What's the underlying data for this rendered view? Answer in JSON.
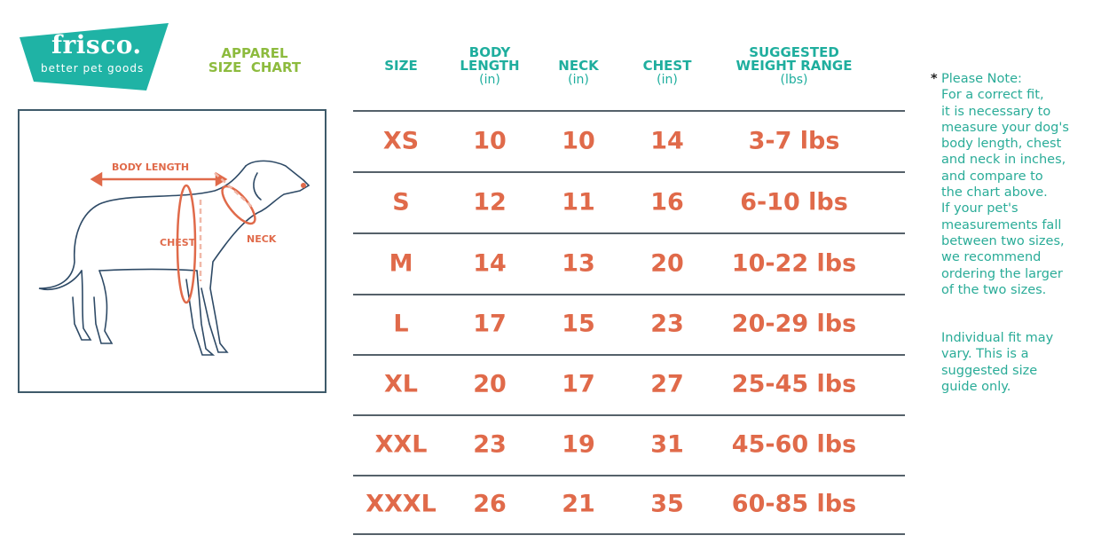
{
  "brand": {
    "name": "frisco.",
    "tagline": "better pet goods",
    "color": "#1fb3a5"
  },
  "title": [
    "APPAREL",
    "SIZE  CHART"
  ],
  "diagram": {
    "labels": {
      "body_length": "BODY LENGTH",
      "chest": "CHEST",
      "neck": "NECK"
    }
  },
  "table": {
    "headers": [
      {
        "label": "SIZE",
        "unit": ""
      },
      {
        "label": "BODY\nLENGTH",
        "unit": "(in)"
      },
      {
        "label": "NECK",
        "unit": "(in)"
      },
      {
        "label": "CHEST",
        "unit": "(in)"
      },
      {
        "label": "SUGGESTED\nWEIGHT RANGE",
        "unit": "(lbs)"
      }
    ],
    "rows": [
      [
        "XS",
        "10",
        "10",
        "14",
        "3-7 lbs"
      ],
      [
        "S",
        "12",
        "11",
        "16",
        "6-10 lbs"
      ],
      [
        "M",
        "14",
        "13",
        "20",
        "10-22 lbs"
      ],
      [
        "L",
        "17",
        "15",
        "23",
        "20-29 lbs"
      ],
      [
        "XL",
        "20",
        "17",
        "27",
        "25-45 lbs"
      ],
      [
        "XXL",
        "23",
        "19",
        "31",
        "45-60 lbs"
      ],
      [
        "XXXL",
        "26",
        "21",
        "35",
        "60-85 lbs"
      ]
    ]
  },
  "note": {
    "star": "*",
    "heading": "Please Note:",
    "body": [
      "For a correct fit,",
      "it is necessary to",
      "measure your dog's",
      "body length, chest",
      "and neck in inches,",
      "and compare to",
      "the chart above.",
      "If your pet's",
      "measurements fall",
      "between two sizes,",
      "we recommend",
      "ordering the larger",
      "of the two sizes."
    ],
    "disclaimer": [
      "Individual fit may",
      "vary. This is a",
      "suggested size",
      "guide only."
    ]
  },
  "colors": {
    "teal": "#1fae9e",
    "orange": "#e06a4a",
    "green": "#8dbb3e",
    "navy": "#2e4a66"
  }
}
